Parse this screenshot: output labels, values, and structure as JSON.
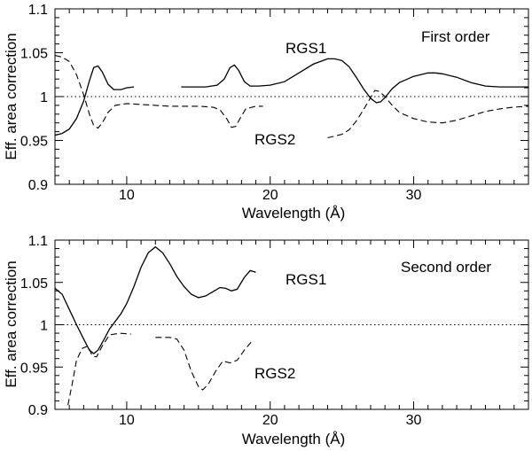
{
  "chart_data": [
    {
      "type": "line",
      "panel": "first-order",
      "annotation": "First order",
      "xlabel": "Wavelength (Å)",
      "ylabel": "Eff. area correction",
      "xlim": [
        5,
        38
      ],
      "ylim": [
        0.9,
        1.1
      ],
      "xticks": [
        10,
        20,
        30
      ],
      "xtick_labels": [
        "10",
        "20",
        "30"
      ],
      "yticks": [
        0.9,
        0.95,
        1,
        1.05,
        1.1
      ],
      "ytick_labels": [
        "0.9",
        "0.95",
        "1",
        "1.05",
        "1.1"
      ],
      "reference_line": 1.0,
      "series": [
        {
          "name": "RGS1",
          "style": "solid",
          "segments": [
            [
              [
                5,
                0.956
              ],
              [
                5.5,
                0.958
              ],
              [
                6,
                0.963
              ],
              [
                6.5,
                0.975
              ],
              [
                7,
                0.995
              ],
              [
                7.4,
                1.018
              ],
              [
                7.7,
                1.033
              ],
              [
                8.0,
                1.035
              ],
              [
                8.3,
                1.028
              ],
              [
                8.7,
                1.014
              ],
              [
                9.1,
                1.008
              ],
              [
                9.6,
                1.008
              ],
              [
                10,
                1.01
              ],
              [
                10.5,
                1.011
              ]
            ],
            [
              [
                13.8,
                1.011
              ],
              [
                14.5,
                1.011
              ],
              [
                15.5,
                1.011
              ],
              [
                16.3,
                1.013
              ],
              [
                16.8,
                1.02
              ],
              [
                17.2,
                1.033
              ],
              [
                17.5,
                1.036
              ],
              [
                17.8,
                1.03
              ],
              [
                18.2,
                1.017
              ],
              [
                18.6,
                1.012
              ],
              [
                19.2,
                1.012
              ],
              [
                20,
                1.013
              ],
              [
                21,
                1.017
              ],
              [
                22,
                1.027
              ],
              [
                23,
                1.037
              ],
              [
                24,
                1.043
              ],
              [
                24.5,
                1.043
              ],
              [
                25,
                1.041
              ],
              [
                25.5,
                1.034
              ],
              [
                26,
                1.022
              ],
              [
                26.5,
                1.009
              ],
              [
                27,
                0.998
              ],
              [
                27.4,
                0.993
              ],
              [
                27.7,
                0.994
              ],
              [
                28,
                0.999
              ],
              [
                28.5,
                1.009
              ],
              [
                29,
                1.016
              ],
              [
                30,
                1.023
              ],
              [
                31,
                1.027
              ],
              [
                31.5,
                1.027
              ],
              [
                32,
                1.026
              ],
              [
                33,
                1.022
              ],
              [
                34,
                1.016
              ],
              [
                35,
                1.012
              ],
              [
                36,
                1.011
              ],
              [
                37,
                1.011
              ],
              [
                38,
                1.011
              ]
            ]
          ]
        },
        {
          "name": "RGS2",
          "style": "dashed",
          "segments": [
            [
              [
                5,
                1.047
              ],
              [
                5.5,
                1.045
              ],
              [
                6,
                1.04
              ],
              [
                6.5,
                1.025
              ],
              [
                7,
                1.002
              ],
              [
                7.4,
                0.98
              ],
              [
                7.7,
                0.967
              ],
              [
                8,
                0.964
              ],
              [
                8.3,
                0.97
              ],
              [
                8.7,
                0.982
              ],
              [
                9.2,
                0.99
              ],
              [
                10,
                0.992
              ],
              [
                11,
                0.991
              ],
              [
                12,
                0.99
              ],
              [
                13,
                0.989
              ],
              [
                14,
                0.989
              ],
              [
                15,
                0.989
              ],
              [
                16,
                0.988
              ],
              [
                16.5,
                0.985
              ],
              [
                17,
                0.974
              ],
              [
                17.3,
                0.965
              ],
              [
                17.6,
                0.966
              ],
              [
                17.9,
                0.975
              ],
              [
                18.3,
                0.986
              ],
              [
                19,
                0.989
              ],
              [
                19.5,
                0.989
              ]
            ],
            [
              [
                24.0,
                0.953
              ],
              [
                24.5,
                0.955
              ],
              [
                25,
                0.957
              ],
              [
                25.5,
                0.962
              ],
              [
                26,
                0.972
              ],
              [
                26.5,
                0.985
              ],
              [
                27,
                0.999
              ],
              [
                27.3,
                1.007
              ],
              [
                27.6,
                1.006
              ],
              [
                28,
                1.0
              ],
              [
                28.5,
                0.99
              ],
              [
                29,
                0.982
              ],
              [
                30,
                0.975
              ],
              [
                31,
                0.971
              ],
              [
                32,
                0.97
              ],
              [
                33,
                0.973
              ],
              [
                34,
                0.978
              ],
              [
                35,
                0.983
              ],
              [
                36,
                0.986
              ],
              [
                37,
                0.988
              ],
              [
                38,
                0.989
              ]
            ]
          ]
        }
      ]
    },
    {
      "type": "line",
      "panel": "second-order",
      "annotation": "Second order",
      "xlabel": "Wavelength (Å)",
      "ylabel": "Eff. area correction",
      "xlim": [
        5,
        38
      ],
      "ylim": [
        0.9,
        1.1
      ],
      "xticks": [
        10,
        20,
        30
      ],
      "xtick_labels": [
        "10",
        "20",
        "30"
      ],
      "yticks": [
        0.9,
        0.95,
        1,
        1.05,
        1.1
      ],
      "ytick_labels": [
        "0.9",
        "0.95",
        "1",
        "1.05",
        "1.1"
      ],
      "reference_line": 1.0,
      "series": [
        {
          "name": "RGS1",
          "style": "solid",
          "segments": [
            [
              [
                5,
                1.043
              ],
              [
                5.5,
                1.036
              ],
              [
                6,
                1.018
              ],
              [
                6.5,
                1.0
              ],
              [
                7,
                0.983
              ],
              [
                7.4,
                0.97
              ],
              [
                7.7,
                0.966
              ],
              [
                8.0,
                0.97
              ],
              [
                8.4,
                0.982
              ],
              [
                8.8,
                0.995
              ],
              [
                9.2,
                1.004
              ],
              [
                9.6,
                1.013
              ],
              [
                10,
                1.025
              ],
              [
                10.5,
                1.045
              ],
              [
                11,
                1.068
              ],
              [
                11.5,
                1.085
              ],
              [
                12,
                1.092
              ],
              [
                12.5,
                1.085
              ],
              [
                13,
                1.072
              ],
              [
                13.5,
                1.057
              ],
              [
                14,
                1.045
              ],
              [
                14.5,
                1.036
              ],
              [
                15,
                1.032
              ],
              [
                15.5,
                1.034
              ],
              [
                16,
                1.039
              ],
              [
                16.5,
                1.044
              ],
              [
                16.9,
                1.043
              ],
              [
                17.3,
                1.04
              ],
              [
                17.7,
                1.042
              ],
              [
                18.2,
                1.056
              ],
              [
                18.6,
                1.064
              ],
              [
                19,
                1.062
              ]
            ]
          ]
        },
        {
          "name": "RGS2",
          "style": "dashed",
          "segments": [
            [
              [
                5.9,
                0.905
              ],
              [
                6.2,
                0.93
              ],
              [
                6.5,
                0.958
              ],
              [
                6.9,
                0.972
              ],
              [
                7.3,
                0.975
              ],
              [
                7.6,
                0.963
              ],
              [
                7.9,
                0.962
              ],
              [
                8.3,
                0.975
              ],
              [
                8.8,
                0.988
              ],
              [
                9.5,
                0.99
              ],
              [
                10.3,
                0.989
              ]
            ],
            [
              [
                12.0,
                0.985
              ],
              [
                13,
                0.985
              ],
              [
                13.5,
                0.983
              ],
              [
                14,
                0.97
              ],
              [
                14.5,
                0.945
              ],
              [
                15,
                0.927
              ],
              [
                15.3,
                0.923
              ],
              [
                15.7,
                0.93
              ],
              [
                16.2,
                0.945
              ],
              [
                16.7,
                0.957
              ],
              [
                17.2,
                0.955
              ],
              [
                17.7,
                0.958
              ],
              [
                18.2,
                0.97
              ],
              [
                18.7,
                0.98
              ]
            ]
          ]
        }
      ]
    }
  ]
}
